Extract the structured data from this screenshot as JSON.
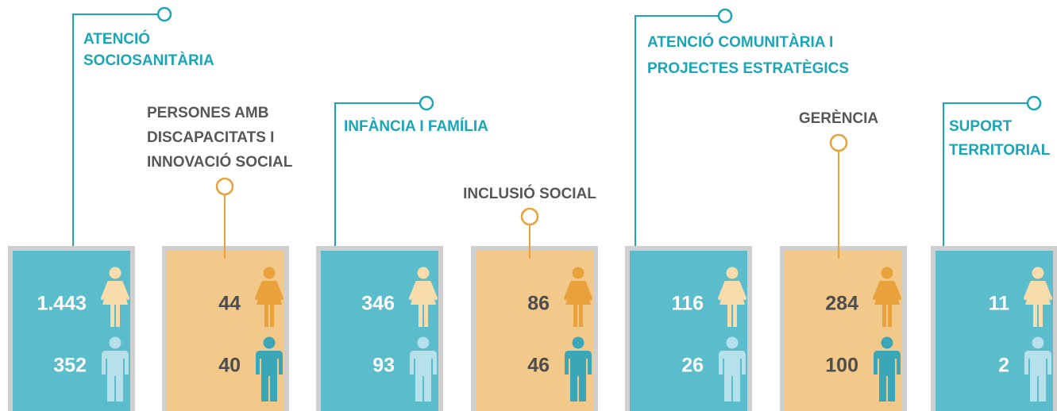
{
  "areas": [
    {
      "label": [
        "ATENCIÓ",
        "SOCIOSANITÀRIA"
      ],
      "women": "1.443",
      "men": "352"
    },
    {
      "label": [
        "PERSONES AMB",
        "DISCAPACITATS I",
        "INNOVACIÓ SOCIAL"
      ],
      "women": "44",
      "men": "40"
    },
    {
      "label": [
        "INFÀNCIA I FAMÍLIA"
      ],
      "women": "346",
      "men": "93"
    },
    {
      "label": [
        "INCLUSIÓ SOCIAL"
      ],
      "women": "86",
      "men": "46"
    },
    {
      "label": [
        "ATENCIÓ COMUNITÀRIA I",
        "PROJECTES ESTRATÈGICS"
      ],
      "women": "116",
      "men": "26"
    },
    {
      "label": [
        "GERÈNCIA"
      ],
      "women": "284",
      "men": "100"
    },
    {
      "label": [
        "SUPORT",
        "TERRITORIAL"
      ],
      "women": "11",
      "men": "2"
    }
  ]
}
